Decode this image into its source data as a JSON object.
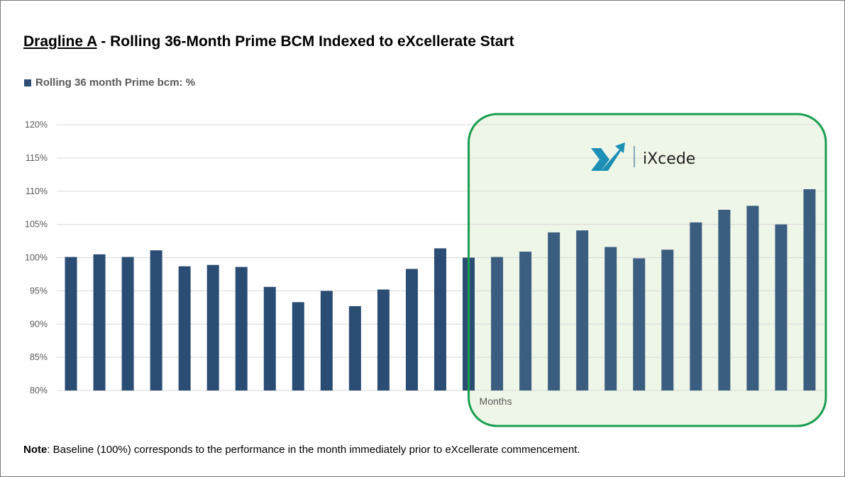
{
  "title": {
    "prefix": "Dragline A",
    "rest": " - Rolling 36-Month Prime BCM Indexed to eXcellerate Start"
  },
  "note": {
    "label": "Note",
    "text": ": Baseline (100%) corresponds to the performance in the month immediately prior to eXcellerate commencement."
  },
  "logo": {
    "text": "iXcede"
  },
  "colors": {
    "bar": "#2b4d74",
    "highlight_border": "#1a9e50",
    "highlight_fill": "#eef6e8",
    "logo": "#1b8fb5"
  },
  "chart_data": {
    "type": "bar",
    "title": "Dragline A - Rolling 36-Month Prime BCM Indexed to eXcellerate Start",
    "xlabel": "Months",
    "ylabel": "",
    "ylim": [
      80,
      120
    ],
    "yticks": [
      "80%",
      "85%",
      "90%",
      "95%",
      "100%",
      "105%",
      "110%",
      "115%",
      "120%"
    ],
    "grid": true,
    "legend": "top-left",
    "series": [
      {
        "name": "Rolling 36 month Prime bcm: %",
        "values": [
          100.1,
          100.5,
          100.1,
          101.1,
          98.7,
          98.9,
          98.6,
          95.6,
          93.3,
          95.0,
          92.7,
          95.2,
          98.3,
          101.4,
          100.0,
          100.1,
          100.9,
          103.8,
          104.1,
          101.6,
          99.9,
          101.2,
          105.3,
          107.2,
          107.8,
          105.0,
          110.3
        ]
      }
    ],
    "highlight_from_index": 15,
    "highlight_label": "iXcede"
  }
}
